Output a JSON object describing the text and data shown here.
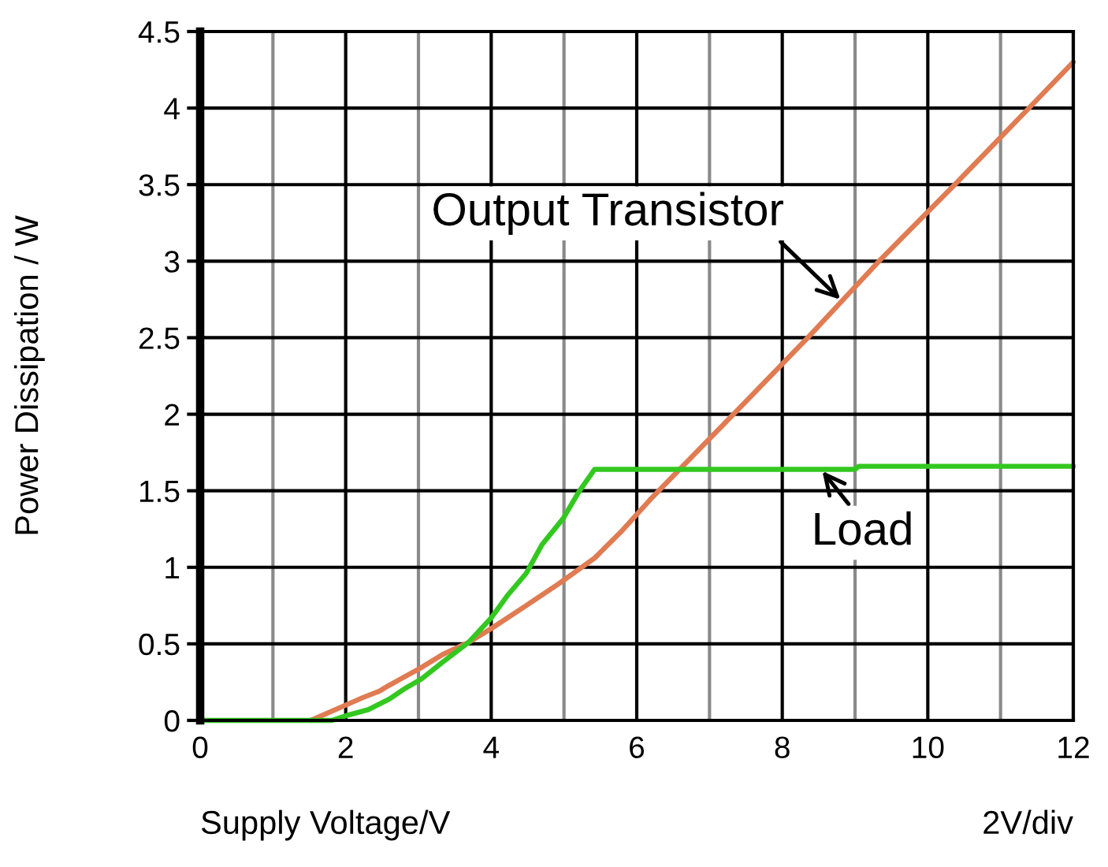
{
  "chart_data": {
    "type": "line",
    "xlabel": "Supply Voltage/V",
    "ylabel": "Power Dissipation / W",
    "annotations": [
      "2V/div"
    ],
    "xlim": [
      0,
      12
    ],
    "ylim": [
      0,
      4.5
    ],
    "xticks": [
      0,
      {
        "value": 1,
        "label": null
      },
      2,
      {
        "value": 3,
        "label": null
      },
      4,
      {
        "value": 5,
        "label": null
      },
      6,
      {
        "value": 7,
        "label": null
      },
      8,
      {
        "value": 9,
        "label": null
      },
      10,
      {
        "value": 11,
        "label": null
      },
      12
    ],
    "yticks": [
      0,
      0.5,
      1,
      1.5,
      2,
      2.5,
      3,
      3.5,
      4,
      4.5
    ],
    "grid": true,
    "series": [
      {
        "name": "Output Transistor",
        "color": "#e07b52",
        "x": [
          1.52,
          2.0,
          2.24,
          2.46,
          2.6,
          3.02,
          3.33,
          3.69,
          4.0,
          4.48,
          4.92,
          5.42,
          5.78,
          6.18,
          6.61,
          7.33,
          8.35,
          8.82,
          9.33,
          10.37,
          11.39,
          12.0
        ],
        "values": [
          0,
          0.1,
          0.15,
          0.19,
          0.23,
          0.34,
          0.43,
          0.51,
          0.6,
          0.75,
          0.89,
          1.06,
          1.23,
          1.44,
          1.65,
          2.0,
          2.5,
          2.74,
          3.0,
          3.5,
          4.0,
          4.3
        ]
      },
      {
        "name": "Load",
        "color": "#33c81f",
        "x": [
          0,
          1.81,
          2.0,
          2.31,
          2.6,
          2.82,
          3.04,
          3.33,
          3.69,
          4.0,
          4.23,
          4.48,
          4.7,
          4.99,
          5.2,
          5.42,
          9.0,
          9.05,
          12.0
        ],
        "values": [
          0,
          0,
          0.03,
          0.07,
          0.14,
          0.21,
          0.27,
          0.38,
          0.51,
          0.67,
          0.82,
          0.96,
          1.15,
          1.32,
          1.49,
          1.64,
          1.64,
          1.66,
          1.66
        ]
      }
    ]
  }
}
